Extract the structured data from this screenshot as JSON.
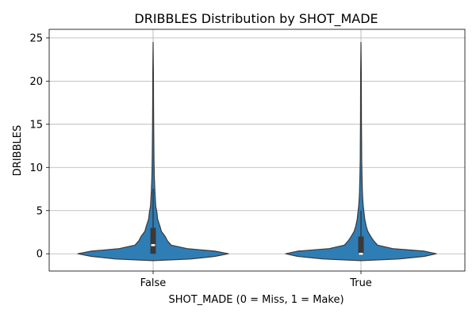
{
  "chart_data": {
    "type": "violin",
    "title": "DRIBBLES Distribution by SHOT_MADE",
    "xlabel": "SHOT_MADE (0 = Miss, 1 = Make)",
    "ylabel": "DRIBBLES",
    "ylim": [
      -2,
      26
    ],
    "yticks": [
      0,
      5,
      10,
      15,
      20,
      25
    ],
    "grid": true,
    "categories": [
      "False",
      "True"
    ],
    "violin_color": "#2f7db5",
    "edge_color": "#3a3a3a",
    "series": [
      {
        "category": "False",
        "min": 0,
        "q1": 0,
        "median": 1,
        "q3": 3,
        "max": 24.5,
        "whisker_high": 7.5,
        "density": [
          [
            -0.8,
            0.0
          ],
          [
            -0.6,
            0.5
          ],
          [
            -0.3,
            0.82
          ],
          [
            0.0,
            1.0
          ],
          [
            0.3,
            0.82
          ],
          [
            0.6,
            0.45
          ],
          [
            1.0,
            0.24
          ],
          [
            1.5,
            0.19
          ],
          [
            2.0,
            0.16
          ],
          [
            2.6,
            0.11
          ],
          [
            3.2,
            0.09
          ],
          [
            4.0,
            0.06
          ],
          [
            4.8,
            0.05
          ],
          [
            5.5,
            0.035
          ],
          [
            6.5,
            0.028
          ],
          [
            7.5,
            0.022
          ],
          [
            9.0,
            0.016
          ],
          [
            11.0,
            0.012
          ],
          [
            13.0,
            0.009
          ],
          [
            15.0,
            0.007
          ],
          [
            18.0,
            0.005
          ],
          [
            21.0,
            0.004
          ],
          [
            24.5,
            0.0
          ]
        ]
      },
      {
        "category": "True",
        "min": 0,
        "q1": 0,
        "median": 0,
        "q3": 2,
        "max": 24.5,
        "whisker_high": 5,
        "density": [
          [
            -0.8,
            0.0
          ],
          [
            -0.6,
            0.5
          ],
          [
            -0.3,
            0.84
          ],
          [
            0.0,
            1.0
          ],
          [
            0.3,
            0.84
          ],
          [
            0.6,
            0.42
          ],
          [
            1.0,
            0.22
          ],
          [
            1.5,
            0.17
          ],
          [
            2.0,
            0.13
          ],
          [
            2.6,
            0.09
          ],
          [
            3.2,
            0.07
          ],
          [
            4.0,
            0.05
          ],
          [
            4.8,
            0.04
          ],
          [
            5.5,
            0.03
          ],
          [
            6.5,
            0.022
          ],
          [
            7.5,
            0.018
          ],
          [
            9.0,
            0.014
          ],
          [
            11.0,
            0.01
          ],
          [
            13.0,
            0.008
          ],
          [
            15.0,
            0.006
          ],
          [
            18.0,
            0.005
          ],
          [
            21.0,
            0.004
          ],
          [
            24.5,
            0.0
          ]
        ]
      }
    ]
  }
}
